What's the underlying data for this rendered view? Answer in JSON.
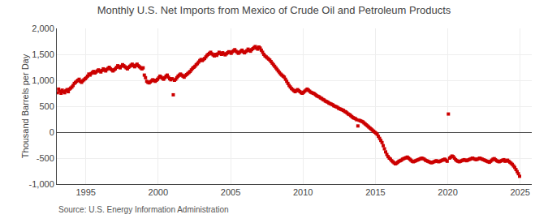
{
  "chart_data": {
    "type": "scatter",
    "title": "Monthly U.S. Net Imports from Mexico of Crude Oil and Petroleum Products",
    "ylabel": "Thousand Barrels per Day",
    "annotations": [
      "Source: U.S. Energy Information Administration"
    ],
    "color": "#cc0000",
    "marker": "square",
    "grid": true,
    "xlim": [
      1993.0,
      2025.8
    ],
    "xticks": [
      1995,
      2000,
      2005,
      2010,
      2015,
      2020,
      2025
    ],
    "ylim": [
      -1000,
      2000
    ],
    "yticks": [
      {
        "value": -1000,
        "label": "-1,000"
      },
      -500,
      0,
      500,
      {
        "value": 1000,
        "label": "1,000"
      },
      {
        "value": 1500,
        "label": "1,500"
      },
      {
        "value": 2000,
        "label": "2,000"
      }
    ],
    "x": [
      1993.0416666666667,
      1993.125,
      1993.2083333333333,
      1993.2916666666667,
      1993.375,
      1993.4583333333333,
      1993.5416666666667,
      1993.625,
      1993.7083333333333,
      1993.7916666666667,
      1993.875,
      1993.9583333333333,
      1994.0416666666667,
      1994.125,
      1994.2083333333333,
      1994.2916666666667,
      1994.375,
      1994.4583333333333,
      1994.5416666666667,
      1994.625,
      1994.7083333333333,
      1994.7916666666667,
      1994.875,
      1994.9583333333333,
      1995.0416666666667,
      1995.125,
      1995.2083333333333,
      1995.2916666666667,
      1995.375,
      1995.4583333333333,
      1995.5416666666667,
      1995.625,
      1995.7083333333333,
      1995.7916666666667,
      1995.875,
      1995.9583333333333,
      1996.0416666666667,
      1996.125,
      1996.2083333333333,
      1996.2916666666667,
      1996.375,
      1996.4583333333333,
      1996.5416666666667,
      1996.625,
      1996.7083333333333,
      1996.7916666666667,
      1996.875,
      1996.9583333333333,
      1997.0416666666667,
      1997.125,
      1997.2083333333333,
      1997.2916666666667,
      1997.375,
      1997.4583333333333,
      1997.5416666666667,
      1997.625,
      1997.7083333333333,
      1997.7916666666667,
      1997.875,
      1997.9583333333333,
      1998.0416666666667,
      1998.125,
      1998.2083333333333,
      1998.2916666666667,
      1998.375,
      1998.4583333333333,
      1998.5416666666667,
      1998.625,
      1998.7083333333333,
      1998.7916666666667,
      1998.875,
      1998.9583333333333,
      1999.0416666666667,
      1999.125,
      1999.2083333333333,
      1999.2916666666667,
      1999.375,
      1999.4583333333333,
      1999.5416666666667,
      1999.625,
      1999.7083333333333,
      1999.7916666666667,
      1999.875,
      1999.9583333333333,
      2000.0416666666667,
      2000.125,
      2000.2083333333333,
      2000.2916666666667,
      2000.375,
      2000.4583333333333,
      2000.5416666666667,
      2000.625,
      2000.7083333333333,
      2000.7916666666667,
      2000.875,
      2000.9583333333333,
      2001.0416666666667,
      2001.125,
      2001.2083333333333,
      2001.2916666666667,
      2001.375,
      2001.4583333333333,
      2001.5416666666667,
      2001.625,
      2001.7083333333333,
      2001.7916666666667,
      2001.875,
      2001.9583333333333,
      2002.0416666666667,
      2002.125,
      2002.2083333333333,
      2002.2916666666667,
      2002.375,
      2002.4583333333333,
      2002.5416666666667,
      2002.625,
      2002.7083333333333,
      2002.7916666666667,
      2002.875,
      2002.9583333333333,
      2003.0416666666667,
      2003.125,
      2003.2083333333333,
      2003.2916666666667,
      2003.375,
      2003.4583333333333,
      2003.5416666666667,
      2003.625,
      2003.7083333333333,
      2003.7916666666667,
      2003.875,
      2003.9583333333333,
      2004.0416666666667,
      2004.125,
      2004.2083333333333,
      2004.2916666666667,
      2004.375,
      2004.4583333333333,
      2004.5416666666667,
      2004.625,
      2004.7083333333333,
      2004.7916666666667,
      2004.875,
      2004.9583333333333,
      2005.0416666666667,
      2005.125,
      2005.2083333333333,
      2005.2916666666667,
      2005.375,
      2005.4583333333333,
      2005.5416666666667,
      2005.625,
      2005.7083333333333,
      2005.7916666666667,
      2005.875,
      2005.9583333333333,
      2006.0416666666667,
      2006.125,
      2006.2083333333333,
      2006.2916666666667,
      2006.375,
      2006.4583333333333,
      2006.5416666666667,
      2006.625,
      2006.7083333333333,
      2006.7916666666667,
      2006.875,
      2006.9583333333333,
      2007.0416666666667,
      2007.125,
      2007.2083333333333,
      2007.2916666666667,
      2007.375,
      2007.4583333333333,
      2007.5416666666667,
      2007.625,
      2007.7083333333333,
      2007.7916666666667,
      2007.875,
      2007.9583333333333,
      2008.0416666666667,
      2008.125,
      2008.2083333333333,
      2008.2916666666667,
      2008.375,
      2008.4583333333333,
      2008.5416666666667,
      2008.625,
      2008.7083333333333,
      2008.7916666666667,
      2008.875,
      2008.9583333333333,
      2009.0416666666667,
      2009.125,
      2009.2083333333333,
      2009.2916666666667,
      2009.375,
      2009.4583333333333,
      2009.5416666666667,
      2009.625,
      2009.7083333333333,
      2009.7916666666667,
      2009.875,
      2009.9583333333333,
      2010.0416666666667,
      2010.125,
      2010.2083333333333,
      2010.2916666666667,
      2010.375,
      2010.4583333333333,
      2010.5416666666667,
      2010.625,
      2010.7083333333333,
      2010.7916666666667,
      2010.875,
      2010.9583333333333,
      2011.0416666666667,
      2011.125,
      2011.2083333333333,
      2011.2916666666667,
      2011.375,
      2011.4583333333333,
      2011.5416666666667,
      2011.625,
      2011.7083333333333,
      2011.7916666666667,
      2011.875,
      2011.9583333333333,
      2012.0416666666667,
      2012.125,
      2012.2083333333333,
      2012.2916666666667,
      2012.375,
      2012.4583333333333,
      2012.5416666666667,
      2012.625,
      2012.7083333333333,
      2012.7916666666667,
      2012.875,
      2012.9583333333333,
      2013.0416666666667,
      2013.125,
      2013.2083333333333,
      2013.2916666666667,
      2013.375,
      2013.4583333333333,
      2013.5416666666667,
      2013.625,
      2013.7083333333333,
      2013.7916666666667,
      2013.875,
      2013.9583333333333,
      2014.0416666666667,
      2014.125,
      2014.2083333333333,
      2014.2916666666667,
      2014.375,
      2014.4583333333333,
      2014.5416666666667,
      2014.625,
      2014.7083333333333,
      2014.7916666666667,
      2014.875,
      2014.9583333333333,
      2015.0416666666667,
      2015.125,
      2015.2083333333333,
      2015.2916666666667,
      2015.375,
      2015.4583333333333,
      2015.5416666666667,
      2015.625,
      2015.7083333333333,
      2015.7916666666667,
      2015.875,
      2015.9583333333333,
      2016.0416666666667,
      2016.125,
      2016.2083333333333,
      2016.2916666666667,
      2016.375,
      2016.4583333333333,
      2016.5416666666667,
      2016.625,
      2016.7083333333333,
      2016.7916666666667,
      2016.875,
      2016.9583333333333,
      2017.0416666666667,
      2017.125,
      2017.2083333333333,
      2017.2916666666667,
      2017.375,
      2017.4583333333333,
      2017.5416666666667,
      2017.625,
      2017.7083333333333,
      2017.7916666666667,
      2017.875,
      2017.9583333333333,
      2018.0416666666667,
      2018.125,
      2018.2083333333333,
      2018.2916666666667,
      2018.375,
      2018.4583333333333,
      2018.5416666666667,
      2018.625,
      2018.7083333333333,
      2018.7916666666667,
      2018.875,
      2018.9583333333333,
      2019.0416666666667,
      2019.125,
      2019.2083333333333,
      2019.2916666666667,
      2019.375,
      2019.4583333333333,
      2019.5416666666667,
      2019.625,
      2019.7083333333333,
      2019.7916666666667,
      2019.875,
      2019.9583333333333,
      2020.0416666666667,
      2020.125,
      2020.2083333333333,
      2020.2916666666667,
      2020.375,
      2020.4583333333333,
      2020.5416666666667,
      2020.625,
      2020.7083333333333,
      2020.7916666666667,
      2020.875,
      2020.9583333333333,
      2021.0416666666667,
      2021.125,
      2021.2083333333333,
      2021.2916666666667,
      2021.375,
      2021.4583333333333,
      2021.5416666666667,
      2021.625,
      2021.7083333333333,
      2021.7916666666667,
      2021.875,
      2021.9583333333333,
      2022.0416666666667,
      2022.125,
      2022.2083333333333,
      2022.2916666666667,
      2022.375,
      2022.4583333333333,
      2022.5416666666667,
      2022.625,
      2022.7083333333333,
      2022.7916666666667,
      2022.875,
      2022.9583333333333,
      2023.0416666666667,
      2023.125,
      2023.2083333333333,
      2023.2916666666667,
      2023.375,
      2023.4583333333333,
      2023.5416666666667,
      2023.625,
      2023.7083333333333,
      2023.7916666666667,
      2023.875,
      2023.9583333333333,
      2024.0416666666667,
      2024.125,
      2024.2083333333333,
      2024.2916666666667,
      2024.375,
      2024.4583333333333,
      2024.5416666666667,
      2024.625,
      2024.7083333333333,
      2024.7916666666667,
      2024.875,
      2024.9583333333333
    ],
    "values": [
      760,
      830,
      790,
      750,
      810,
      780,
      760,
      800,
      820,
      780,
      830,
      850,
      870,
      900,
      940,
      960,
      980,
      1000,
      1020,
      980,
      960,
      990,
      1010,
      1030,
      1050,
      1080,
      1120,
      1100,
      1130,
      1150,
      1170,
      1140,
      1160,
      1180,
      1200,
      1180,
      1160,
      1190,
      1220,
      1200,
      1180,
      1210,
      1230,
      1250,
      1220,
      1200,
      1180,
      1200,
      1220,
      1250,
      1280,
      1260,
      1240,
      1270,
      1300,
      1280,
      1260,
      1240,
      1220,
      1250,
      1270,
      1290,
      1310,
      1280,
      1260,
      1290,
      1310,
      1280,
      1260,
      1240,
      1220,
      1240,
      1100,
      1050,
      980,
      960,
      950,
      970,
      990,
      1010,
      1000,
      980,
      1000,
      1020,
      1050,
      1080,
      1060,
      1040,
      1020,
      1050,
      1080,
      1100,
      1060,
      1030,
      1010,
      1030,
      720,
      1000,
      1020,
      1050,
      1080,
      1100,
      1120,
      1100,
      1080,
      1060,
      1090,
      1110,
      1130,
      1150,
      1170,
      1200,
      1230,
      1250,
      1270,
      1300,
      1320,
      1350,
      1380,
      1400,
      1380,
      1400,
      1420,
      1450,
      1480,
      1500,
      1520,
      1540,
      1510,
      1490,
      1470,
      1500,
      1480,
      1510,
      1540,
      1520,
      1500,
      1530,
      1510,
      1490,
      1510,
      1530,
      1550,
      1540,
      1520,
      1550,
      1570,
      1590,
      1560,
      1540,
      1520,
      1540,
      1560,
      1580,
      1550,
      1530,
      1550,
      1570,
      1600,
      1580,
      1560,
      1590,
      1610,
      1630,
      1650,
      1620,
      1600,
      1640,
      1620,
      1580,
      1540,
      1500,
      1470,
      1450,
      1430,
      1410,
      1390,
      1360,
      1330,
      1300,
      1270,
      1240,
      1210,
      1180,
      1150,
      1120,
      1100,
      1080,
      1060,
      1020,
      980,
      940,
      900,
      870,
      840,
      820,
      800,
      780,
      800,
      820,
      800,
      780,
      760,
      750,
      770,
      790,
      810,
      830,
      810,
      790,
      770,
      760,
      750,
      740,
      720,
      700,
      690,
      680,
      660,
      650,
      630,
      620,
      600,
      590,
      580,
      560,
      550,
      540,
      530,
      510,
      500,
      490,
      480,
      460,
      450,
      440,
      430,
      420,
      400,
      390,
      370,
      350,
      340,
      320,
      300,
      280,
      270,
      260,
      240,
      120,
      230,
      220,
      210,
      200,
      180,
      160,
      140,
      120,
      100,
      80,
      60,
      40,
      20,
      0,
      -20,
      -40,
      -80,
      -120,
      -160,
      -200,
      -260,
      -320,
      -380,
      -430,
      -470,
      -500,
      -520,
      -550,
      -570,
      -590,
      -610,
      -600,
      -580,
      -560,
      -550,
      -540,
      -520,
      -510,
      -500,
      -490,
      -480,
      -500,
      -520,
      -540,
      -560,
      -570,
      -560,
      -550,
      -540,
      -530,
      -520,
      -510,
      -500,
      -510,
      -520,
      -540,
      -550,
      -560,
      -570,
      -580,
      -590,
      -580,
      -570,
      -560,
      -550,
      -560,
      -570,
      -560,
      -550,
      -540,
      -530,
      -520,
      -540,
      -560,
      350,
      -500,
      -480,
      -460,
      -470,
      -500,
      -530,
      -550,
      -560,
      -570,
      -560,
      -550,
      -540,
      -530,
      -540,
      -550,
      -540,
      -530,
      -520,
      -510,
      -500,
      -510,
      -520,
      -530,
      -520,
      -510,
      -500,
      -510,
      -520,
      -530,
      -540,
      -550,
      -560,
      -570,
      -580,
      -560,
      -540,
      -520,
      -510,
      -530,
      -550,
      -560,
      -570,
      -560,
      -550,
      -540,
      -530,
      -560,
      -550,
      -540,
      -560,
      -580,
      -600,
      -620,
      -650,
      -680,
      -720,
      -760,
      -800,
      -850
    ]
  }
}
